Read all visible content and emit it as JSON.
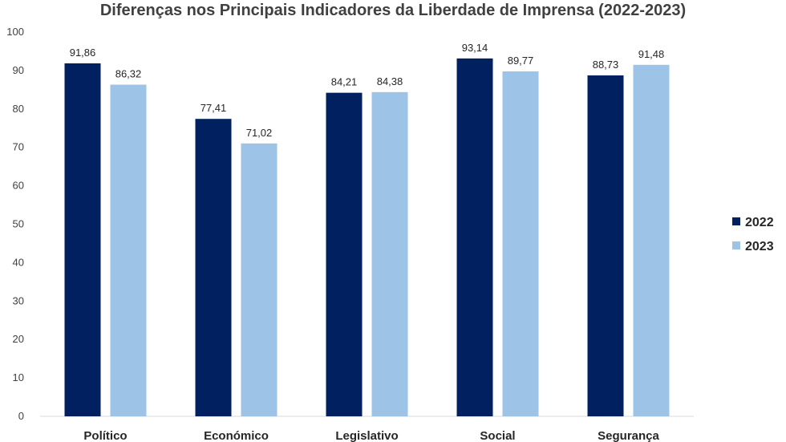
{
  "chart_data": {
    "type": "bar",
    "title": "Diferenças nos Principais Indicadores da Liberdade de Imprensa (2022-2023)",
    "xlabel": "",
    "ylabel": "",
    "categories": [
      "Político",
      "Económico",
      "Legislativo",
      "Social",
      "Segurança"
    ],
    "series": [
      {
        "name": "2022",
        "color": "#002060",
        "values": [
          91.86,
          77.41,
          84.21,
          93.14,
          88.73
        ],
        "labels": [
          "91,86",
          "77,41",
          "84,21",
          "93,14",
          "88,73"
        ]
      },
      {
        "name": "2023",
        "color": "#9DC3E6",
        "values": [
          86.32,
          71.02,
          84.38,
          89.77,
          91.48
        ],
        "labels": [
          "86,32",
          "71,02",
          "84,38",
          "89,77",
          "91,48"
        ]
      }
    ],
    "ylim": [
      0,
      100
    ],
    "yticks": [
      "0",
      "10",
      "20",
      "30",
      "40",
      "50",
      "60",
      "70",
      "80",
      "90",
      "100"
    ],
    "grid": false,
    "legend_position": "right"
  }
}
